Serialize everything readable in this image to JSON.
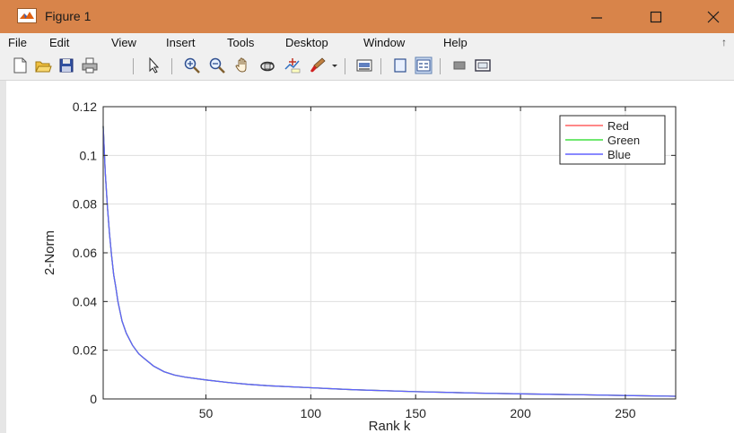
{
  "window": {
    "title": "Figure 1"
  },
  "menu": [
    "File",
    "Edit",
    "View",
    "Insert",
    "Tools",
    "Desktop",
    "Window",
    "Help"
  ],
  "toolbar_icons": [
    "new-figure-icon",
    "open-file-icon",
    "save-icon",
    "print-icon",
    "pointer-icon",
    "zoom-in-icon",
    "zoom-out-icon",
    "pan-icon",
    "rotate-3d-icon",
    "data-cursor-icon",
    "brush-icon",
    "dropdown-arrow-icon",
    "link-plot-icon",
    "insert-colorbar-icon",
    "insert-legend-icon",
    "hide-plot-tools-icon",
    "show-plot-tools-icon"
  ],
  "colors": {
    "titlebar": "#d8844a",
    "red": "#ff6060",
    "green": "#40e040",
    "blue": "#6060ff"
  },
  "chart_data": {
    "type": "line",
    "xlabel": "Rank k",
    "ylabel": "2-Norm",
    "xlim": [
      1,
      274
    ],
    "ylim": [
      0,
      0.12
    ],
    "xticks": [
      50,
      100,
      150,
      200,
      250
    ],
    "yticks": [
      0,
      0.02,
      0.04,
      0.06,
      0.08,
      0.1,
      0.12
    ],
    "ytick_labels": [
      "0",
      "0.02",
      "0.04",
      "0.06",
      "0.08",
      "0.1",
      "0.12"
    ],
    "grid": true,
    "legend": "top-right",
    "x": [
      1,
      2,
      3,
      4,
      5,
      6,
      7,
      8,
      10,
      12,
      15,
      18,
      20,
      25,
      30,
      35,
      40,
      50,
      60,
      70,
      80,
      100,
      120,
      150,
      180,
      200,
      230,
      250,
      274
    ],
    "series": [
      {
        "name": "Red",
        "values": [
          0.112,
          0.093,
          0.079,
          0.068,
          0.059,
          0.051,
          0.046,
          0.04,
          0.032,
          0.027,
          0.022,
          0.0185,
          0.017,
          0.0135,
          0.0112,
          0.0098,
          0.009,
          0.0078,
          0.0068,
          0.006,
          0.0054,
          0.0046,
          0.0038,
          0.003,
          0.0024,
          0.0021,
          0.0017,
          0.0014,
          0.0011
        ]
      },
      {
        "name": "Green",
        "values": [
          0.112,
          0.093,
          0.079,
          0.068,
          0.059,
          0.051,
          0.046,
          0.04,
          0.032,
          0.027,
          0.022,
          0.0185,
          0.017,
          0.0135,
          0.0112,
          0.0098,
          0.009,
          0.0078,
          0.0068,
          0.006,
          0.0054,
          0.0046,
          0.0038,
          0.003,
          0.0024,
          0.0021,
          0.0017,
          0.0014,
          0.0011
        ]
      },
      {
        "name": "Blue",
        "values": [
          0.112,
          0.093,
          0.079,
          0.068,
          0.059,
          0.051,
          0.046,
          0.04,
          0.032,
          0.027,
          0.022,
          0.0185,
          0.017,
          0.0135,
          0.0112,
          0.0098,
          0.009,
          0.0078,
          0.0068,
          0.006,
          0.0054,
          0.0046,
          0.0038,
          0.003,
          0.0024,
          0.0021,
          0.0017,
          0.0014,
          0.0011
        ]
      }
    ]
  }
}
